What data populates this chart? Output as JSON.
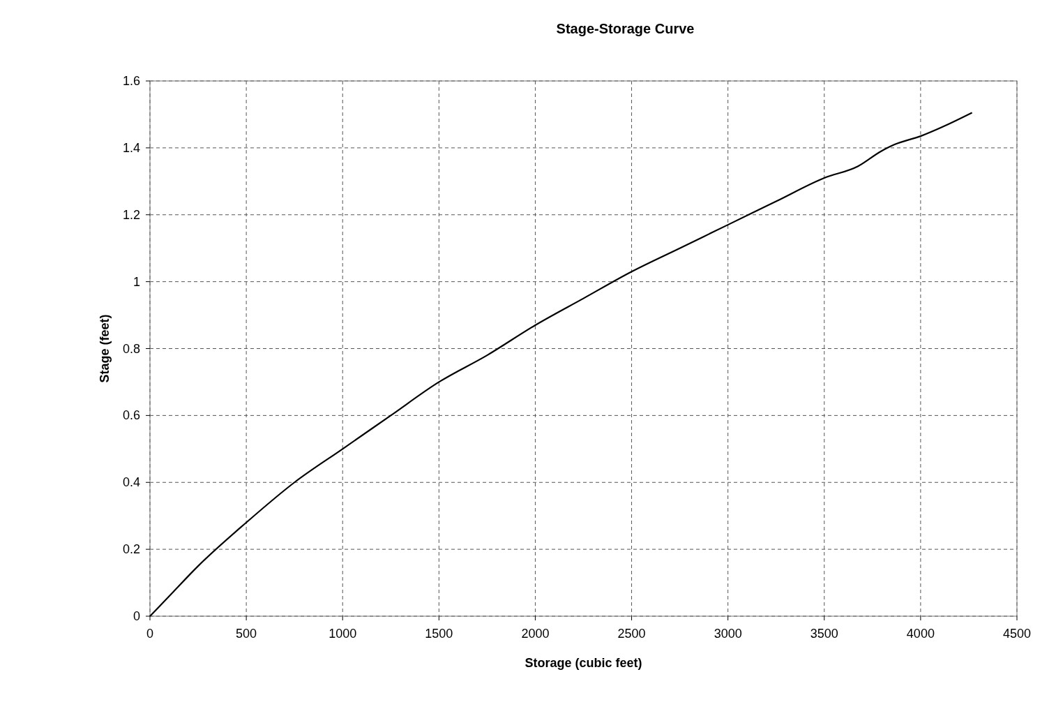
{
  "chart_data": {
    "type": "line",
    "title": "Stage-Storage Curve",
    "xlabel": "Storage (cubic feet)",
    "ylabel": "Stage (feet)",
    "x": [
      0,
      100,
      250,
      500,
      750,
      1000,
      1250,
      1500,
      1750,
      2000,
      2250,
      2500,
      2750,
      3000,
      3250,
      3500,
      3675,
      3795,
      3865,
      4000,
      4142,
      4267
    ],
    "series": [
      {
        "color": "#000000",
        "values": [
          0,
          0.06,
          0.15,
          0.28,
          0.4,
          0.5,
          0.6,
          0.7,
          0.78,
          0.87,
          0.95,
          1.03,
          1.1,
          1.17,
          1.24,
          1.31,
          1.345,
          1.39,
          1.41,
          1.435,
          1.47,
          1.505
        ]
      }
    ],
    "xlim": [
      0,
      4500
    ],
    "xticks": [
      0,
      500,
      1000,
      1500,
      2000,
      2500,
      3000,
      3500,
      4000,
      4500
    ],
    "ylim": [
      0,
      1.6
    ],
    "yticks": [
      0,
      0.2,
      0.4,
      0.6,
      0.8,
      1,
      1.2,
      1.4,
      1.6
    ],
    "grid": true,
    "marker": "none",
    "line_style": "solid"
  }
}
